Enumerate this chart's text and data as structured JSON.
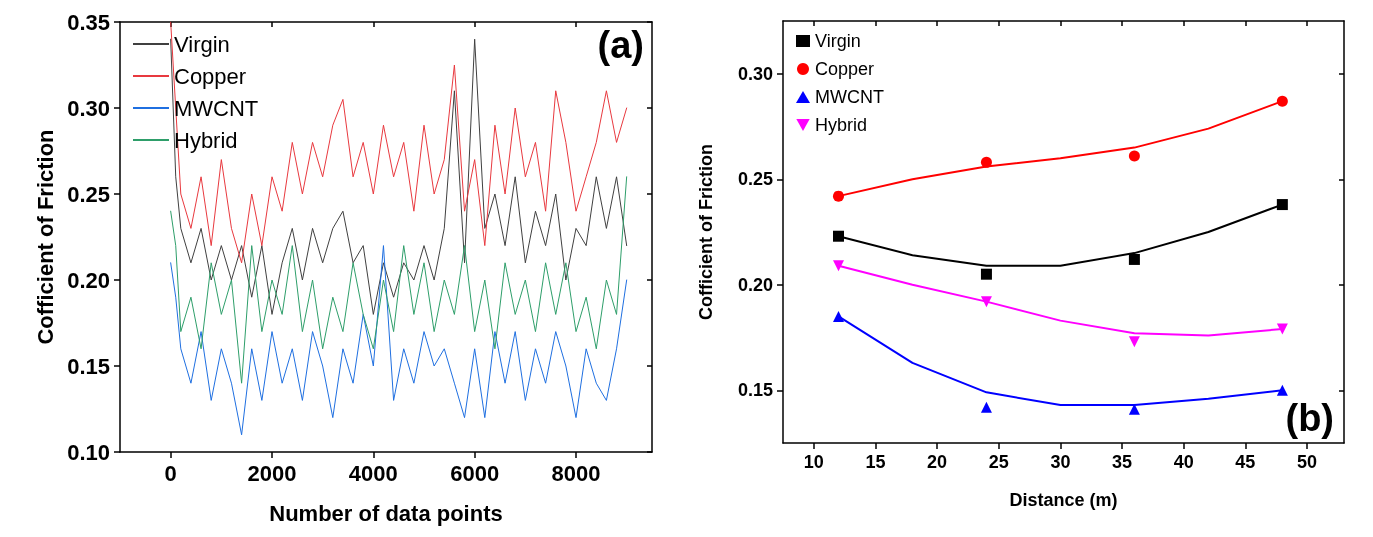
{
  "chart_data": [
    {
      "type": "line",
      "xlabel": "Number of data points",
      "ylabel": "Cofficient of Friction",
      "annotations": [
        "(a)"
      ],
      "x": [
        0,
        100,
        200,
        400,
        600,
        800,
        1000,
        1200,
        1400,
        1600,
        1800,
        2000,
        2200,
        2400,
        2600,
        2800,
        3000,
        3200,
        3400,
        3600,
        3800,
        4000,
        4200,
        4400,
        4600,
        4800,
        5000,
        5200,
        5400,
        5600,
        5800,
        6000,
        6200,
        6400,
        6600,
        6800,
        7000,
        7200,
        7400,
        7600,
        7800,
        8000,
        8200,
        8400,
        8600,
        8800,
        9000
      ],
      "series": [
        {
          "name": "Virgin",
          "color": "#404040",
          "values": [
            0.34,
            0.26,
            0.23,
            0.21,
            0.23,
            0.2,
            0.22,
            0.2,
            0.22,
            0.19,
            0.22,
            0.18,
            0.21,
            0.23,
            0.2,
            0.23,
            0.21,
            0.23,
            0.24,
            0.21,
            0.22,
            0.18,
            0.21,
            0.19,
            0.21,
            0.2,
            0.22,
            0.2,
            0.23,
            0.31,
            0.21,
            0.34,
            0.23,
            0.25,
            0.22,
            0.26,
            0.21,
            0.24,
            0.22,
            0.25,
            0.2,
            0.23,
            0.22,
            0.26,
            0.23,
            0.26,
            0.22
          ]
        },
        {
          "name": "Copper",
          "color": "#e8393f",
          "values": [
            0.35,
            0.3,
            0.25,
            0.23,
            0.26,
            0.22,
            0.27,
            0.23,
            0.21,
            0.25,
            0.22,
            0.26,
            0.24,
            0.28,
            0.25,
            0.28,
            0.26,
            0.29,
            0.305,
            0.26,
            0.28,
            0.25,
            0.29,
            0.26,
            0.28,
            0.24,
            0.29,
            0.25,
            0.27,
            0.325,
            0.24,
            0.27,
            0.22,
            0.29,
            0.25,
            0.3,
            0.26,
            0.28,
            0.24,
            0.31,
            0.28,
            0.24,
            0.26,
            0.28,
            0.31,
            0.28,
            0.3
          ]
        },
        {
          "name": "MWCNT",
          "color": "#1f6fe0",
          "values": [
            0.21,
            0.19,
            0.16,
            0.14,
            0.17,
            0.13,
            0.16,
            0.14,
            0.11,
            0.16,
            0.13,
            0.17,
            0.14,
            0.16,
            0.13,
            0.17,
            0.15,
            0.12,
            0.16,
            0.14,
            0.18,
            0.15,
            0.22,
            0.13,
            0.16,
            0.14,
            0.17,
            0.15,
            0.16,
            0.14,
            0.12,
            0.16,
            0.12,
            0.17,
            0.14,
            0.17,
            0.13,
            0.16,
            0.14,
            0.17,
            0.15,
            0.12,
            0.16,
            0.14,
            0.13,
            0.16,
            0.2
          ]
        },
        {
          "name": "Hybrid",
          "color": "#2e9e6a",
          "values": [
            0.24,
            0.22,
            0.17,
            0.19,
            0.16,
            0.21,
            0.18,
            0.2,
            0.14,
            0.22,
            0.17,
            0.2,
            0.18,
            0.22,
            0.17,
            0.2,
            0.16,
            0.19,
            0.17,
            0.21,
            0.18,
            0.16,
            0.2,
            0.17,
            0.22,
            0.18,
            0.21,
            0.17,
            0.2,
            0.18,
            0.22,
            0.17,
            0.2,
            0.16,
            0.21,
            0.18,
            0.2,
            0.17,
            0.21,
            0.18,
            0.21,
            0.17,
            0.19,
            0.16,
            0.2,
            0.18,
            0.26
          ]
        }
      ],
      "xlim": [
        -1000,
        9500
      ],
      "xticks": [
        0,
        2000,
        4000,
        6000,
        8000
      ],
      "ylim": [
        0.1,
        0.35
      ],
      "yticks": [
        {
          "value": 0.1,
          "label": "0.10"
        },
        {
          "value": 0.15,
          "label": "0.15"
        },
        {
          "value": 0.2,
          "label": "0.20"
        },
        {
          "value": 0.25,
          "label": "0.25"
        },
        {
          "value": 0.3,
          "label": "0.30"
        },
        {
          "value": 0.35,
          "label": "0.35"
        }
      ],
      "grid": false,
      "legend": "top left",
      "marker": "none"
    },
    {
      "type": "scatter",
      "xlabel": "Distance (m)",
      "ylabel": "Cofficient of Friction",
      "annotations": [
        "(b)"
      ],
      "x": [
        12,
        24,
        36,
        48
      ],
      "series": [
        {
          "name": "Virgin",
          "color": "#000000",
          "marker": "square",
          "values": [
            0.223,
            0.205,
            0.212,
            0.238
          ]
        },
        {
          "name": "Copper",
          "color": "#ff0000",
          "marker": "circle",
          "values": [
            0.242,
            0.258,
            0.261,
            0.287
          ]
        },
        {
          "name": "MWCNT",
          "color": "#0000ff",
          "marker": "triangle",
          "values": [
            0.185,
            0.142,
            0.141,
            0.15
          ]
        },
        {
          "name": "Hybrid",
          "color": "#ff00ff",
          "marker": "triangle_down",
          "values": [
            0.209,
            0.192,
            0.173,
            0.179
          ]
        },
        {
          "type": "line",
          "color": "#000000",
          "x": [
            12,
            18,
            24,
            30,
            36,
            42,
            48
          ],
          "values": [
            0.223,
            0.214,
            0.209,
            0.209,
            0.215,
            0.225,
            0.238
          ]
        },
        {
          "type": "line",
          "color": "#ff0000",
          "x": [
            12,
            18,
            24,
            30,
            36,
            42,
            48
          ],
          "values": [
            0.242,
            0.25,
            0.256,
            0.26,
            0.265,
            0.274,
            0.287
          ]
        },
        {
          "type": "line",
          "color": "#0000ff",
          "x": [
            12,
            18,
            24,
            30,
            36,
            42,
            48
          ],
          "values": [
            0.185,
            0.163,
            0.149,
            0.143,
            0.143,
            0.146,
            0.15
          ]
        },
        {
          "type": "line",
          "color": "#ff00ff",
          "x": [
            12,
            18,
            24,
            30,
            36,
            42,
            48
          ],
          "values": [
            0.209,
            0.2,
            0.192,
            0.183,
            0.177,
            0.176,
            0.179
          ]
        }
      ],
      "xlim": [
        7.5,
        53
      ],
      "xticks": [
        10,
        15,
        20,
        25,
        30,
        35,
        40,
        45,
        50
      ],
      "ylim": [
        0.125,
        0.325
      ],
      "yticks": [
        {
          "value": 0.15,
          "label": "0.15"
        },
        {
          "value": 0.2,
          "label": "0.20"
        },
        {
          "value": 0.25,
          "label": "0.25"
        },
        {
          "value": 0.3,
          "label": "0.30"
        }
      ],
      "grid": false,
      "legend": "top left"
    }
  ]
}
